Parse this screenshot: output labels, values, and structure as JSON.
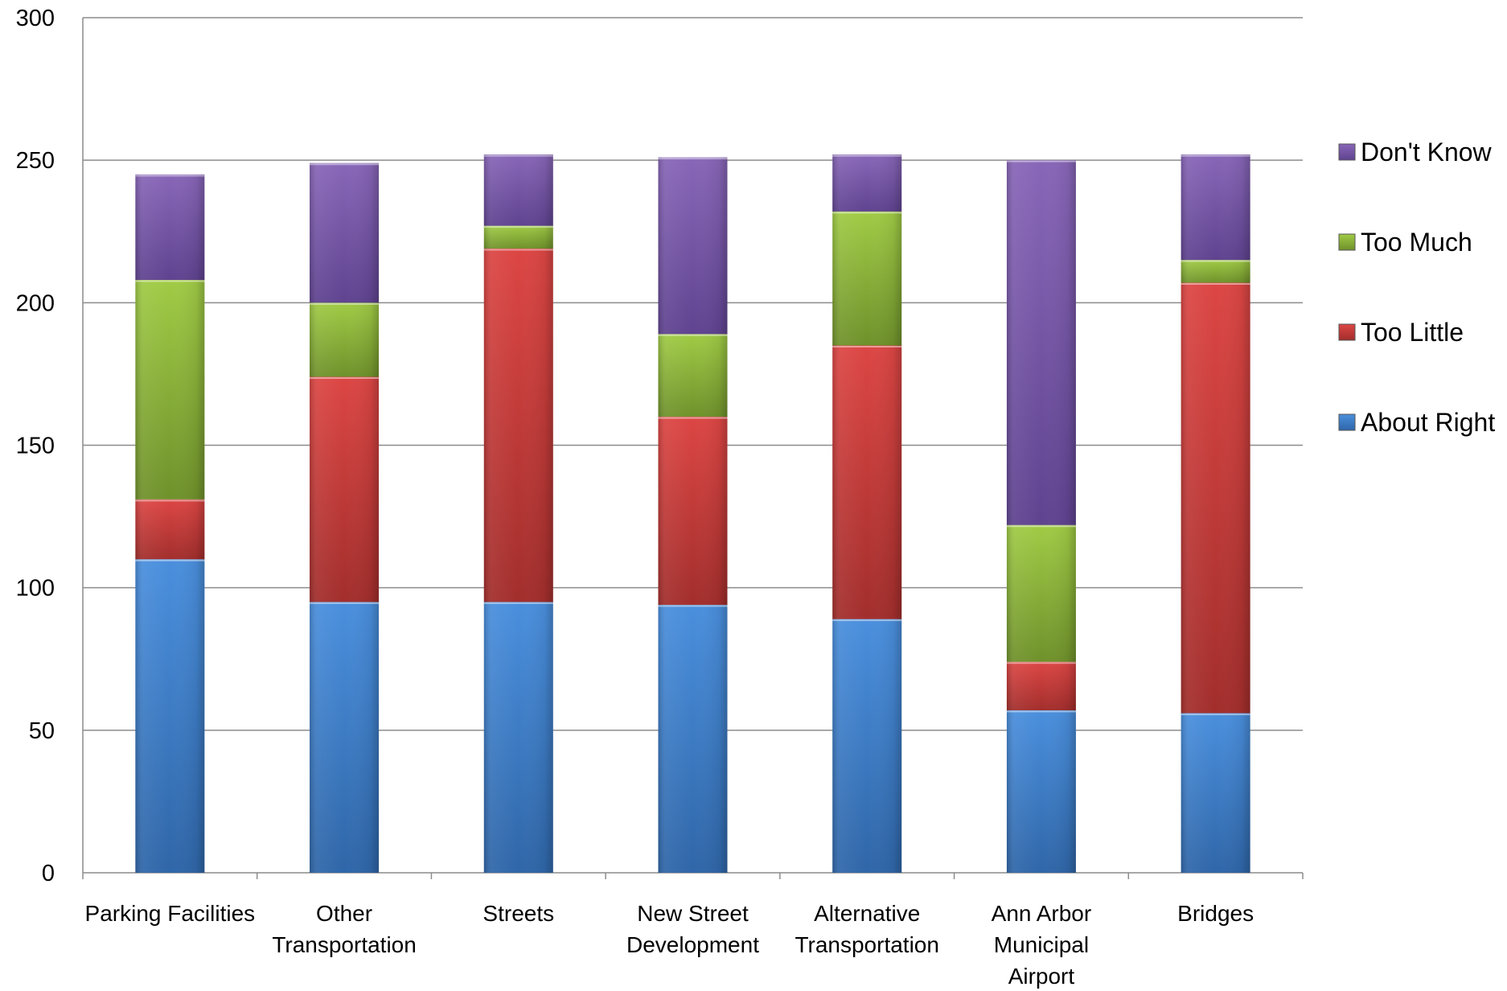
{
  "chart_data": {
    "type": "bar",
    "stacked": true,
    "title": "",
    "xlabel": "",
    "ylabel": "",
    "ylim": [
      0,
      300
    ],
    "yticks": [
      0,
      50,
      100,
      150,
      200,
      250,
      300
    ],
    "grid": true,
    "legend_position": "right",
    "categories": [
      "Parking Facilities",
      "Other Transportation",
      "Streets",
      "New Street Development",
      "Alternative Transportation",
      "Ann Arbor Municipal Airport",
      "Bridges"
    ],
    "category_label_lines": [
      [
        "Parking Facilities"
      ],
      [
        "Other",
        "Transportation"
      ],
      [
        "Streets"
      ],
      [
        "New Street",
        "Development"
      ],
      [
        "Alternative",
        "Transportation"
      ],
      [
        "Ann Arbor",
        "Municipal",
        "Airport"
      ],
      [
        "Bridges"
      ]
    ],
    "series": [
      {
        "name": "About Right",
        "color": "#3b7cc9",
        "values": [
          110,
          95,
          95,
          94,
          89,
          57,
          56
        ]
      },
      {
        "name": "Too Little",
        "color": "#c33a37",
        "values": [
          21,
          79,
          124,
          66,
          96,
          17,
          151
        ]
      },
      {
        "name": "Too Much",
        "color": "#8bb43a",
        "values": [
          77,
          26,
          8,
          29,
          47,
          48,
          8
        ]
      },
      {
        "name": "Don't Know",
        "color": "#7554a5",
        "values": [
          37,
          49,
          25,
          62,
          20,
          128,
          37
        ]
      }
    ]
  }
}
